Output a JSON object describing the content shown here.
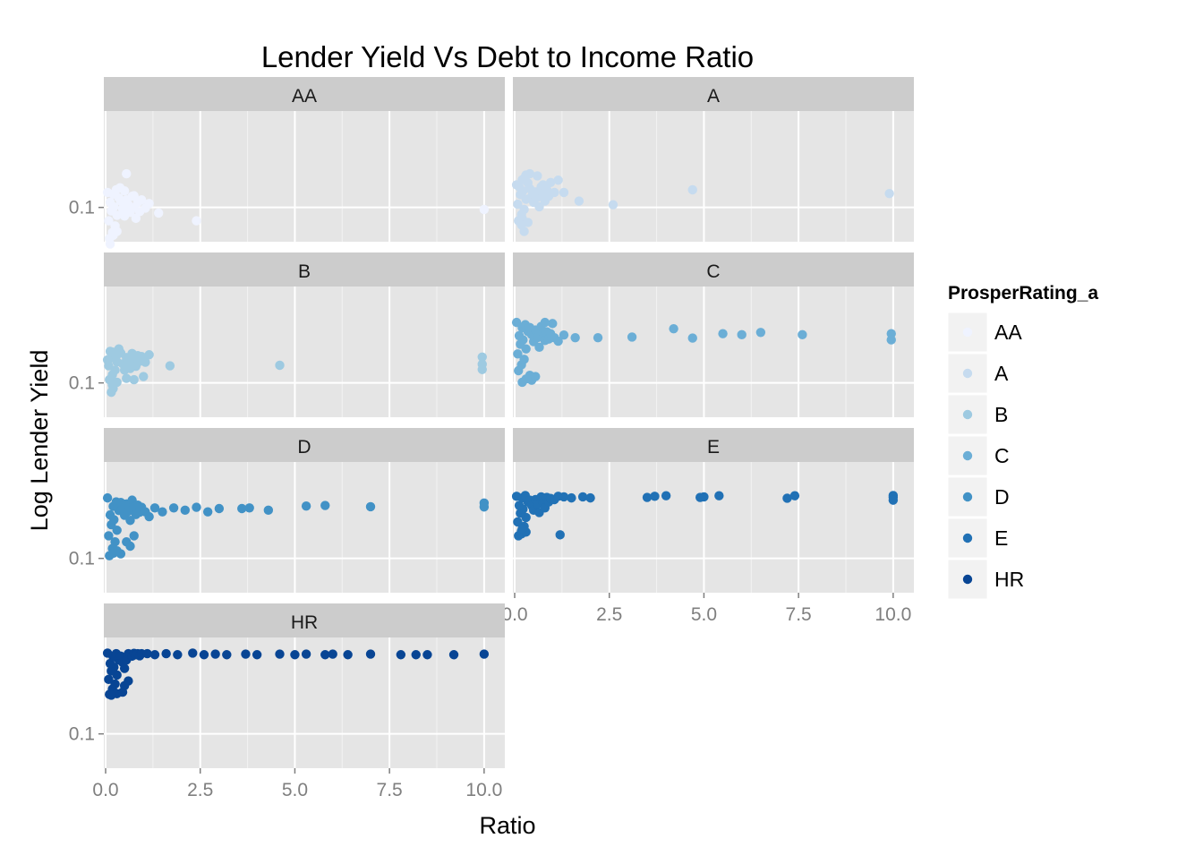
{
  "chart_data": {
    "type": "scatter",
    "title": "Lender Yield Vs Debt to Income Ratio",
    "xlabel": "Ratio",
    "ylabel": "Log Lender Yield",
    "x_scale": "linear",
    "y_scale": "log10",
    "xlim": [
      0,
      10.5
    ],
    "ylim": [
      0.06,
      0.42
    ],
    "x_ticks": [
      0,
      2.5,
      5,
      7.5,
      10
    ],
    "x_tick_labels": [
      "0.0",
      "2.5",
      "5.0",
      "7.5",
      "10.0"
    ],
    "y_ticks": [
      0.1
    ],
    "y_tick_labels": [
      "0.1"
    ],
    "grid": true,
    "facet_order": [
      "AA",
      "A",
      "B",
      "C",
      "D",
      "E",
      "HR"
    ],
    "legend": {
      "title": "ProsperRating_a",
      "position": "right",
      "entries": [
        "AA",
        "A",
        "B",
        "C",
        "D",
        "E",
        "HR"
      ]
    },
    "series": [
      {
        "name": "AA",
        "color": "#eff3ff",
        "points": [
          [
            0.1,
            0.063
          ],
          [
            0.18,
            0.069
          ],
          [
            0.25,
            0.076
          ],
          [
            0.08,
            0.082
          ],
          [
            0.3,
            0.089
          ],
          [
            0.15,
            0.095
          ],
          [
            0.22,
            0.101
          ],
          [
            0.12,
            0.108
          ],
          [
            0.35,
            0.115
          ],
          [
            0.2,
            0.122
          ],
          [
            0.28,
            0.13
          ],
          [
            0.05,
            0.125
          ],
          [
            0.4,
            0.11
          ],
          [
            0.45,
            0.098
          ],
          [
            0.5,
            0.088
          ],
          [
            0.55,
            0.112
          ],
          [
            0.6,
            0.104
          ],
          [
            0.65,
            0.093
          ],
          [
            0.7,
            0.118
          ],
          [
            0.75,
            0.1
          ],
          [
            0.8,
            0.085
          ],
          [
            0.85,
            0.108
          ],
          [
            0.9,
            0.094
          ],
          [
            0.95,
            0.112
          ],
          [
            1.05,
            0.099
          ],
          [
            1.15,
            0.106
          ],
          [
            0.3,
            0.07
          ],
          [
            0.12,
            0.058
          ],
          [
            0.2,
            0.066
          ],
          [
            0.38,
            0.134
          ],
          [
            0.5,
            0.128
          ],
          [
            0.75,
            0.119
          ],
          [
            1.4,
            0.092
          ],
          [
            2.4,
            0.082
          ],
          [
            0.55,
            0.165
          ],
          [
            10.0,
            0.097
          ]
        ]
      },
      {
        "name": "A",
        "color": "#c6dbef",
        "points": [
          [
            0.1,
            0.082
          ],
          [
            0.18,
            0.09
          ],
          [
            0.25,
            0.097
          ],
          [
            0.08,
            0.105
          ],
          [
            0.3,
            0.113
          ],
          [
            0.15,
            0.121
          ],
          [
            0.22,
            0.128
          ],
          [
            0.12,
            0.136
          ],
          [
            0.35,
            0.144
          ],
          [
            0.2,
            0.151
          ],
          [
            0.28,
            0.158
          ],
          [
            0.05,
            0.14
          ],
          [
            0.4,
            0.132
          ],
          [
            0.45,
            0.118
          ],
          [
            0.5,
            0.108
          ],
          [
            0.55,
            0.126
          ],
          [
            0.6,
            0.116
          ],
          [
            0.65,
            0.101
          ],
          [
            0.7,
            0.136
          ],
          [
            0.75,
            0.122
          ],
          [
            0.8,
            0.11
          ],
          [
            0.85,
            0.13
          ],
          [
            0.9,
            0.118
          ],
          [
            0.95,
            0.145
          ],
          [
            1.05,
            0.125
          ],
          [
            1.15,
            0.15
          ],
          [
            0.4,
            0.165
          ],
          [
            0.3,
            0.162
          ],
          [
            0.6,
            0.16
          ],
          [
            0.2,
            0.085
          ],
          [
            0.35,
            0.08
          ],
          [
            0.18,
            0.077
          ],
          [
            0.25,
            0.07
          ],
          [
            0.75,
            0.14
          ],
          [
            1.3,
            0.125
          ],
          [
            1.7,
            0.11
          ],
          [
            2.6,
            0.104
          ],
          [
            4.7,
            0.13
          ],
          [
            9.9,
            0.123
          ]
        ]
      },
      {
        "name": "B",
        "color": "#9ecae1",
        "points": [
          [
            0.1,
            0.105
          ],
          [
            0.18,
            0.113
          ],
          [
            0.25,
            0.121
          ],
          [
            0.08,
            0.129
          ],
          [
            0.3,
            0.137
          ],
          [
            0.15,
            0.145
          ],
          [
            0.22,
            0.152
          ],
          [
            0.12,
            0.16
          ],
          [
            0.35,
            0.166
          ],
          [
            0.2,
            0.158
          ],
          [
            0.28,
            0.149
          ],
          [
            0.05,
            0.141
          ],
          [
            0.4,
            0.156
          ],
          [
            0.45,
            0.133
          ],
          [
            0.5,
            0.121
          ],
          [
            0.55,
            0.146
          ],
          [
            0.6,
            0.135
          ],
          [
            0.65,
            0.124
          ],
          [
            0.7,
            0.155
          ],
          [
            0.75,
            0.142
          ],
          [
            0.8,
            0.128
          ],
          [
            0.85,
            0.15
          ],
          [
            0.9,
            0.138
          ],
          [
            0.95,
            0.148
          ],
          [
            1.05,
            0.136
          ],
          [
            1.15,
            0.152
          ],
          [
            0.3,
            0.101
          ],
          [
            0.18,
            0.097
          ],
          [
            0.2,
            0.092
          ],
          [
            0.15,
            0.087
          ],
          [
            0.55,
            0.107
          ],
          [
            0.75,
            0.105
          ],
          [
            1.0,
            0.11
          ],
          [
            1.7,
            0.129
          ],
          [
            4.6,
            0.13
          ],
          [
            9.95,
            0.147
          ],
          [
            9.95,
            0.132
          ],
          [
            9.95,
            0.122
          ]
        ]
      },
      {
        "name": "C",
        "color": "#6baed6",
        "points": [
          [
            0.1,
            0.12
          ],
          [
            0.18,
            0.131
          ],
          [
            0.25,
            0.142
          ],
          [
            0.08,
            0.154
          ],
          [
            0.3,
            0.166
          ],
          [
            0.15,
            0.178
          ],
          [
            0.22,
            0.19
          ],
          [
            0.12,
            0.202
          ],
          [
            0.35,
            0.215
          ],
          [
            0.2,
            0.227
          ],
          [
            0.28,
            0.238
          ],
          [
            0.05,
            0.246
          ],
          [
            0.4,
            0.228
          ],
          [
            0.45,
            0.205
          ],
          [
            0.5,
            0.185
          ],
          [
            0.55,
            0.22
          ],
          [
            0.6,
            0.196
          ],
          [
            0.65,
            0.17
          ],
          [
            0.7,
            0.232
          ],
          [
            0.75,
            0.21
          ],
          [
            0.8,
            0.188
          ],
          [
            0.85,
            0.214
          ],
          [
            0.9,
            0.192
          ],
          [
            0.95,
            0.208
          ],
          [
            1.05,
            0.196
          ],
          [
            1.15,
            0.186
          ],
          [
            1.3,
            0.204
          ],
          [
            0.3,
            0.106
          ],
          [
            0.2,
            0.101
          ],
          [
            0.45,
            0.104
          ],
          [
            0.4,
            0.112
          ],
          [
            0.55,
            0.11
          ],
          [
            1.0,
            0.242
          ],
          [
            0.8,
            0.246
          ],
          [
            1.6,
            0.196
          ],
          [
            2.2,
            0.196
          ],
          [
            3.1,
            0.198
          ],
          [
            4.2,
            0.224
          ],
          [
            4.7,
            0.195
          ],
          [
            5.5,
            0.208
          ],
          [
            6.0,
            0.205
          ],
          [
            6.5,
            0.212
          ],
          [
            7.6,
            0.205
          ],
          [
            9.95,
            0.208
          ],
          [
            9.95,
            0.19
          ]
        ]
      },
      {
        "name": "D",
        "color": "#4292c6",
        "points": [
          [
            0.1,
            0.104
          ],
          [
            0.18,
            0.116
          ],
          [
            0.25,
            0.128
          ],
          [
            0.08,
            0.14
          ],
          [
            0.3,
            0.152
          ],
          [
            0.15,
            0.165
          ],
          [
            0.22,
            0.178
          ],
          [
            0.12,
            0.191
          ],
          [
            0.35,
            0.204
          ],
          [
            0.2,
            0.217
          ],
          [
            0.28,
            0.232
          ],
          [
            0.05,
            0.246
          ],
          [
            0.4,
            0.23
          ],
          [
            0.45,
            0.21
          ],
          [
            0.5,
            0.19
          ],
          [
            0.55,
            0.225
          ],
          [
            0.6,
            0.202
          ],
          [
            0.65,
            0.176
          ],
          [
            0.7,
            0.238
          ],
          [
            0.75,
            0.215
          ],
          [
            0.8,
            0.192
          ],
          [
            0.85,
            0.221
          ],
          [
            0.9,
            0.199
          ],
          [
            0.95,
            0.214
          ],
          [
            1.05,
            0.2
          ],
          [
            1.15,
            0.186
          ],
          [
            1.3,
            0.212
          ],
          [
            1.5,
            0.2
          ],
          [
            1.8,
            0.212
          ],
          [
            2.1,
            0.205
          ],
          [
            2.4,
            0.214
          ],
          [
            2.7,
            0.2
          ],
          [
            0.2,
            0.108
          ],
          [
            0.3,
            0.112
          ],
          [
            0.4,
            0.107
          ],
          [
            0.55,
            0.128
          ],
          [
            0.65,
            0.12
          ],
          [
            0.75,
            0.14
          ],
          [
            3.0,
            0.21
          ],
          [
            3.6,
            0.21
          ],
          [
            3.8,
            0.212
          ],
          [
            4.3,
            0.205
          ],
          [
            5.3,
            0.218
          ],
          [
            5.8,
            0.22
          ],
          [
            7.0,
            0.216
          ],
          [
            10.0,
            0.228
          ],
          [
            10.0,
            0.215
          ]
        ]
      },
      {
        "name": "E",
        "color": "#2171b5",
        "points": [
          [
            0.1,
            0.14
          ],
          [
            0.18,
            0.15
          ],
          [
            0.25,
            0.161
          ],
          [
            0.08,
            0.172
          ],
          [
            0.3,
            0.184
          ],
          [
            0.15,
            0.196
          ],
          [
            0.22,
            0.208
          ],
          [
            0.12,
            0.22
          ],
          [
            0.35,
            0.232
          ],
          [
            0.2,
            0.246
          ],
          [
            0.28,
            0.255
          ],
          [
            0.05,
            0.252
          ],
          [
            0.4,
            0.238
          ],
          [
            0.45,
            0.22
          ],
          [
            0.5,
            0.205
          ],
          [
            0.55,
            0.24
          ],
          [
            0.6,
            0.224
          ],
          [
            0.65,
            0.198
          ],
          [
            0.7,
            0.25
          ],
          [
            0.75,
            0.23
          ],
          [
            0.8,
            0.212
          ],
          [
            0.85,
            0.248
          ],
          [
            0.9,
            0.232
          ],
          [
            0.95,
            0.244
          ],
          [
            1.05,
            0.24
          ],
          [
            1.15,
            0.252
          ],
          [
            1.3,
            0.25
          ],
          [
            1.5,
            0.246
          ],
          [
            1.8,
            0.25
          ],
          [
            2.0,
            0.246
          ],
          [
            0.18,
            0.144
          ],
          [
            0.3,
            0.148
          ],
          [
            0.2,
            0.155
          ],
          [
            1.2,
            0.142
          ],
          [
            3.5,
            0.248
          ],
          [
            3.7,
            0.252
          ],
          [
            4.0,
            0.254
          ],
          [
            4.9,
            0.248
          ],
          [
            5.0,
            0.25
          ],
          [
            5.4,
            0.254
          ],
          [
            7.2,
            0.245
          ],
          [
            7.4,
            0.254
          ],
          [
            10.0,
            0.255
          ],
          [
            10.0,
            0.248
          ],
          [
            10.0,
            0.238
          ]
        ]
      },
      {
        "name": "HR",
        "color": "#084594",
        "points": [
          [
            0.1,
            0.18
          ],
          [
            0.18,
            0.195
          ],
          [
            0.25,
            0.21
          ],
          [
            0.08,
            0.225
          ],
          [
            0.3,
            0.24
          ],
          [
            0.15,
            0.255
          ],
          [
            0.22,
            0.27
          ],
          [
            0.12,
            0.285
          ],
          [
            0.35,
            0.3
          ],
          [
            0.2,
            0.315
          ],
          [
            0.28,
            0.33
          ],
          [
            0.05,
            0.333
          ],
          [
            0.4,
            0.318
          ],
          [
            0.45,
            0.29
          ],
          [
            0.5,
            0.265
          ],
          [
            0.55,
            0.3
          ],
          [
            0.6,
            0.33
          ],
          [
            0.65,
            0.325
          ],
          [
            0.7,
            0.318
          ],
          [
            0.75,
            0.332
          ],
          [
            0.8,
            0.325
          ],
          [
            0.85,
            0.33
          ],
          [
            0.9,
            0.32
          ],
          [
            0.95,
            0.33
          ],
          [
            1.1,
            0.33
          ],
          [
            1.3,
            0.325
          ],
          [
            1.6,
            0.33
          ],
          [
            1.9,
            0.325
          ],
          [
            2.3,
            0.333
          ],
          [
            2.6,
            0.325
          ],
          [
            2.9,
            0.328
          ],
          [
            3.2,
            0.325
          ],
          [
            3.7,
            0.328
          ],
          [
            4.0,
            0.325
          ],
          [
            4.6,
            0.328
          ],
          [
            5.0,
            0.325
          ],
          [
            5.3,
            0.328
          ],
          [
            5.8,
            0.325
          ],
          [
            6.0,
            0.328
          ],
          [
            6.4,
            0.325
          ],
          [
            7.0,
            0.328
          ],
          [
            7.8,
            0.325
          ],
          [
            8.2,
            0.325
          ],
          [
            8.5,
            0.325
          ],
          [
            9.2,
            0.325
          ],
          [
            10.0,
            0.328
          ],
          [
            0.3,
            0.182
          ],
          [
            0.45,
            0.186
          ],
          [
            0.5,
            0.205
          ],
          [
            0.6,
            0.22
          ],
          [
            0.15,
            0.178
          ]
        ]
      }
    ]
  }
}
